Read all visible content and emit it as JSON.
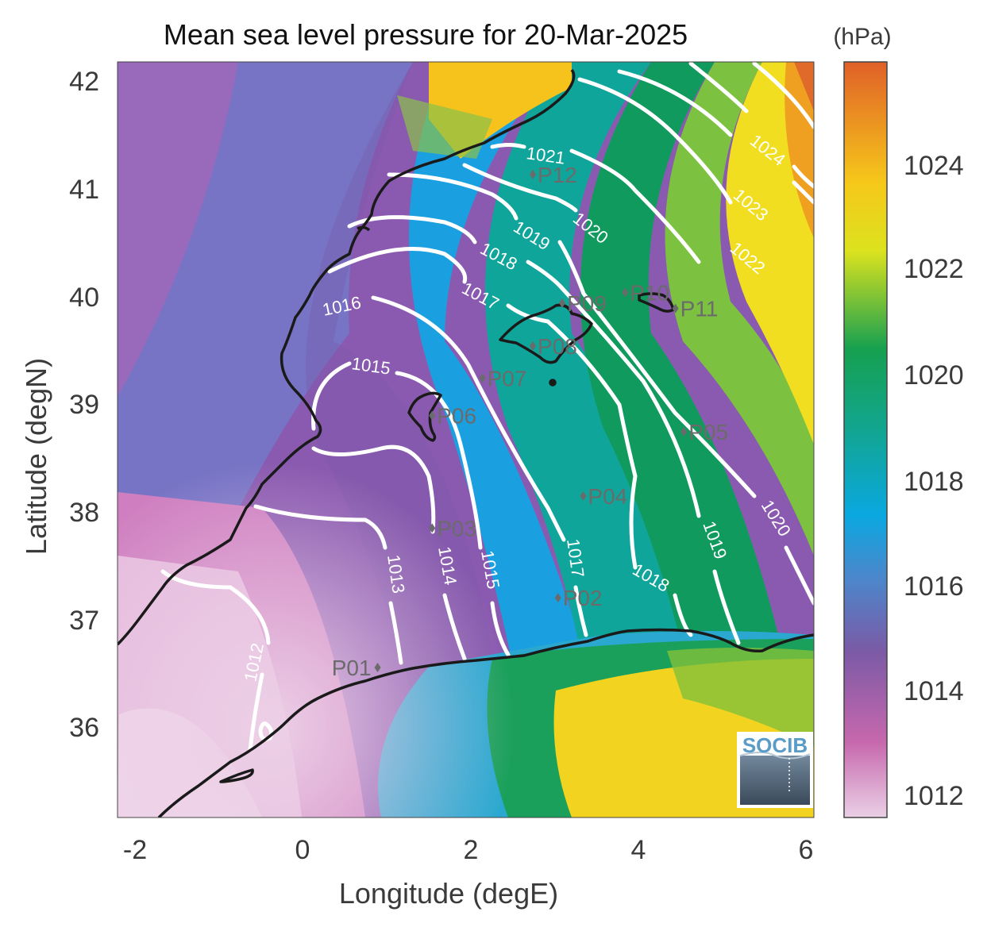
{
  "title": "Mean sea level pressure for 20-Mar-2025",
  "colorbar": {
    "unit": "(hPa)",
    "ticks": [
      "1012",
      "1014",
      "1016",
      "1018",
      "1020",
      "1022",
      "1024"
    ],
    "range": [
      1011.6,
      1025.7
    ]
  },
  "axes": {
    "xlabel": "Longitude (degE)",
    "ylabel": "Latitude (degN)",
    "xticks": [
      "-2",
      "0",
      "2",
      "4",
      "6"
    ],
    "yticks": [
      "36",
      "37",
      "38",
      "39",
      "40",
      "41",
      "42"
    ],
    "xlim": [
      -2.25,
      6.05
    ],
    "ylim": [
      35.1,
      42.15
    ]
  },
  "contour_labels": [
    "1012",
    "1013",
    "1014",
    "1015",
    "1015",
    "1016",
    "1017",
    "1017",
    "1018",
    "1018",
    "1019",
    "1019",
    "1020",
    "1020",
    "1021",
    "1022",
    "1023",
    "1024"
  ],
  "stations": [
    {
      "name": "P01",
      "lon": 0.85,
      "lat": 36.5
    },
    {
      "name": "P02",
      "lon": 3.0,
      "lat": 37.15
    },
    {
      "name": "P03",
      "lon": 1.5,
      "lat": 37.8
    },
    {
      "name": "P04",
      "lon": 3.3,
      "lat": 38.1
    },
    {
      "name": "P05",
      "lon": 4.5,
      "lat": 38.7
    },
    {
      "name": "P06",
      "lon": 1.5,
      "lat": 38.85
    },
    {
      "name": "P07",
      "lon": 2.1,
      "lat": 39.2
    },
    {
      "name": "P08",
      "lon": 2.7,
      "lat": 39.5
    },
    {
      "name": "P09",
      "lon": 3.05,
      "lat": 39.9
    },
    {
      "name": "P10",
      "lon": 3.8,
      "lat": 40.0
    },
    {
      "name": "P11",
      "lon": 4.4,
      "lat": 39.85
    },
    {
      "name": "P12",
      "lon": 2.7,
      "lat": 41.1
    }
  ],
  "logo": {
    "text": "SOCIB"
  },
  "colors": {
    "low": "#e8c4de",
    "purple": "#7a5aa8",
    "blue": "#0aa4dc",
    "teal": "#10a590",
    "green": "#1aa55a",
    "yellow": "#f4e21a",
    "orange": "#e06a2a",
    "coast": "#1a1a1a",
    "contour": "#ffffff"
  }
}
